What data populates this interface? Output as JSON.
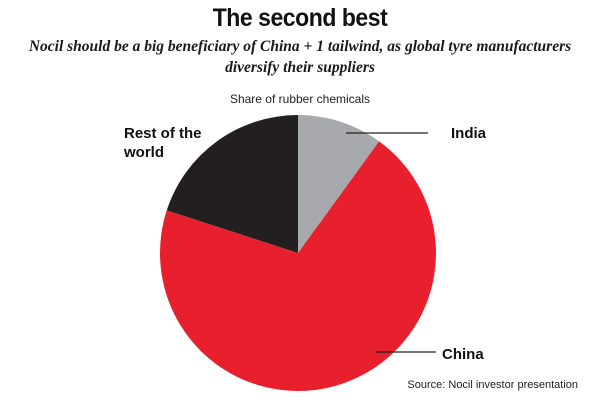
{
  "header": {
    "title": "The second best",
    "subtitle": "Nocil should be a big beneficiary of China + 1 tailwind, as global tyre manufacturers diversify their suppliers"
  },
  "chart_data": {
    "type": "pie",
    "title": "Share of rubber chemicals",
    "slices": [
      {
        "label": "India",
        "value": 10,
        "color": "#a7a9ac"
      },
      {
        "label": "China",
        "value": 70,
        "color": "#e8202e"
      },
      {
        "label": "Rest of the world",
        "value": 20,
        "color": "#231f20"
      }
    ],
    "start_angle": "12 o'clock",
    "direction": "clockwise",
    "legend": "callout labels with leader lines"
  },
  "source": "Source: Nocil investor presentation"
}
